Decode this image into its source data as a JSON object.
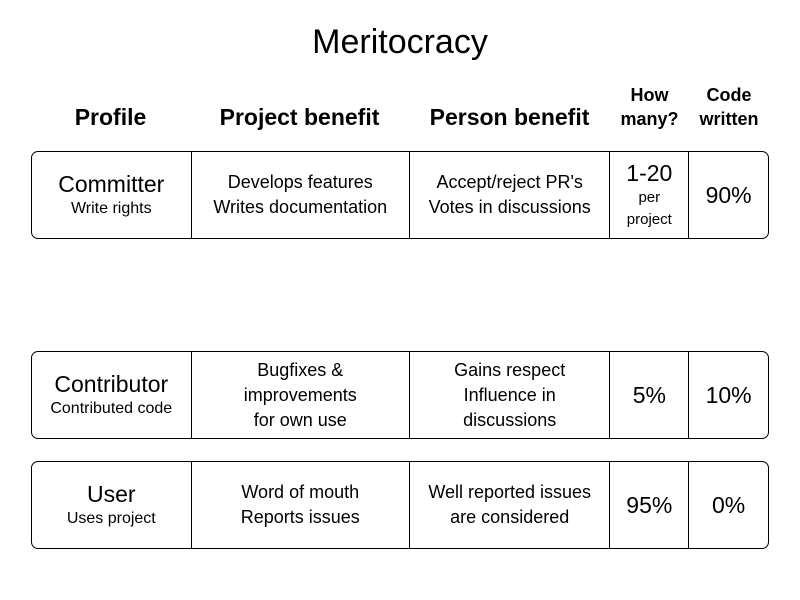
{
  "title": "Meritocracy",
  "headers": {
    "profile": "Profile",
    "project_benefit": "Project benefit",
    "person_benefit": "Person benefit",
    "how_many": [
      "How",
      "many?"
    ],
    "code_written": [
      "Code",
      "written"
    ]
  },
  "rows": [
    {
      "profile": "Committer",
      "profile_sub": "Write rights",
      "project_benefit": [
        "Develops features",
        "Writes documentation"
      ],
      "person_benefit": [
        "Accept/reject PR's",
        "Votes in discussions"
      ],
      "how_many": "1-20",
      "how_many_sub": [
        "per",
        "project"
      ],
      "code_written": "90%"
    },
    {
      "profile": "Contributor",
      "profile_sub": "Contributed code",
      "project_benefit": [
        "Bugfixes &",
        "improvements",
        "for own use"
      ],
      "person_benefit": [
        "Gains respect",
        "Influence in",
        "discussions"
      ],
      "how_many": "5%",
      "code_written": "10%"
    },
    {
      "profile": "User",
      "profile_sub": "Uses project",
      "project_benefit": [
        "Word of mouth",
        "Reports issues"
      ],
      "person_benefit": [
        "Well reported issues",
        "are considered"
      ],
      "how_many": "95%",
      "code_written": "0%"
    }
  ]
}
